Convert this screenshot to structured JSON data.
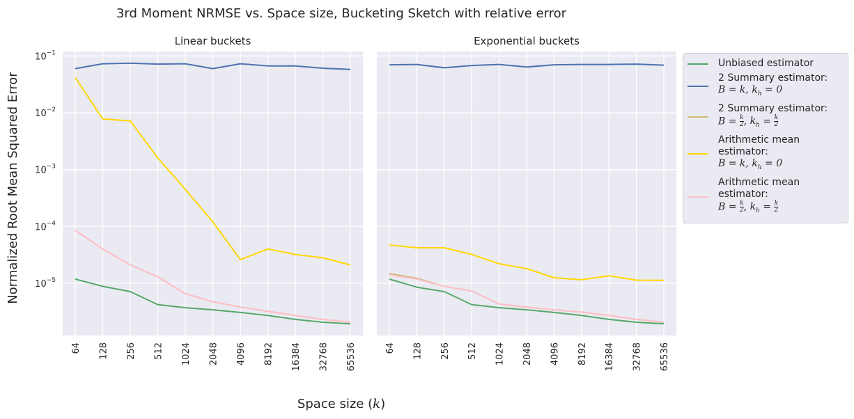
{
  "figure": {
    "title": "3rd Moment NRMSE vs. Space size, Bucketing Sketch with relative error",
    "xlabel": "Space size (k)",
    "ylabel": "Normalized Root Mean Squared Error"
  },
  "legend": {
    "items": [
      {
        "line1": "Unbiased estimator",
        "formula": "",
        "color": "#55a868"
      },
      {
        "line1": "2 Summary estimator:",
        "formula": "B = k, k_h = 0",
        "color": "#4c72b0"
      },
      {
        "line1": "2 Summary estimator:",
        "formula": "B = k/2, k_h = k/2",
        "color": "#ccb974"
      },
      {
        "line1": "Arithmetic mean estimator:",
        "formula": "B = k, k_h = 0",
        "color": "#ffd700"
      },
      {
        "line1": "Arithmetic mean estimator:",
        "formula": "B = k/2, k_h = k/2",
        "color": "#ffc0cb"
      }
    ]
  },
  "chart_data": [
    {
      "type": "line",
      "title": "Linear buckets",
      "yscale": "log",
      "ylim": [
        1.2e-06,
        0.12
      ],
      "ytick_labels": [
        "10^-1",
        "10^-2",
        "10^-3",
        "10^-4",
        "10^-5"
      ],
      "categories": [
        "64",
        "128",
        "256",
        "512",
        "1024",
        "2048",
        "4096",
        "8192",
        "16384",
        "32768",
        "65536"
      ],
      "grid": true,
      "series": [
        {
          "name": "Unbiased estimator",
          "color": "#55a868",
          "values": [
            1.18e-05,
            8.8e-06,
            7.1e-06,
            4.2e-06,
            3.7e-06,
            3.4e-06,
            3.05e-06,
            2.7e-06,
            2.3e-06,
            2.05e-06,
            1.92e-06
          ]
        },
        {
          "name": "2 Summary estimator: B = k, k_h = 0",
          "color": "#4c72b0",
          "values": [
            0.06,
            0.073,
            0.075,
            0.072,
            0.073,
            0.06,
            0.073,
            0.067,
            0.067,
            0.061,
            0.058
          ]
        },
        {
          "name": "2 Summary estimator: B = k/2, k_h = k/2",
          "color": "#ccb974",
          "values": [
            8.5e-05,
            4e-05,
            2.1e-05,
            1.3e-05,
            6.5e-06,
            4.7e-06,
            3.8e-06,
            3.2e-06,
            2.7e-06,
            2.3e-06,
            2.05e-06
          ]
        },
        {
          "name": "Arithmetic mean estimator: B = k, k_h = 0",
          "color": "#ffd700",
          "values": [
            0.042,
            0.0078,
            0.0072,
            0.0016,
            0.00045,
            0.00012,
            2.6e-05,
            4e-05,
            3.2e-05,
            2.8e-05,
            2.1e-05
          ]
        },
        {
          "name": "Arithmetic mean estimator: B = k/2, k_h = k/2",
          "color": "#ffc0cb",
          "values": [
            8.5e-05,
            4e-05,
            2.1e-05,
            1.3e-05,
            6.5e-06,
            4.7e-06,
            3.8e-06,
            3.2e-06,
            2.7e-06,
            2.3e-06,
            2.05e-06
          ]
        }
      ]
    },
    {
      "type": "line",
      "title": "Exponential buckets",
      "yscale": "log",
      "ylim": [
        1.2e-06,
        0.12
      ],
      "categories": [
        "64",
        "128",
        "256",
        "512",
        "1024",
        "2048",
        "4096",
        "8192",
        "16384",
        "32768",
        "65536"
      ],
      "grid": true,
      "series": [
        {
          "name": "Unbiased estimator",
          "color": "#55a868",
          "values": [
            1.18e-05,
            8.5e-06,
            7.1e-06,
            4.2e-06,
            3.7e-06,
            3.4e-06,
            3.05e-06,
            2.7e-06,
            2.3e-06,
            2.05e-06,
            1.92e-06
          ]
        },
        {
          "name": "2 Summary estimator: B = k, k_h = 0",
          "color": "#4c72b0",
          "values": [
            0.07,
            0.071,
            0.062,
            0.068,
            0.071,
            0.064,
            0.07,
            0.071,
            0.071,
            0.072,
            0.069
          ]
        },
        {
          "name": "2 Summary estimator: B = k/2, k_h = k/2",
          "color": "#ccb974",
          "values": [
            1.48e-05,
            1.22e-05,
            8.8e-06,
            7.3e-06,
            4.3e-06,
            3.8e-06,
            3.4e-06,
            3.1e-06,
            2.7e-06,
            2.3e-06,
            2.05e-06
          ]
        },
        {
          "name": "Arithmetic mean estimator: B = k, k_h = 0",
          "color": "#ffd700",
          "values": [
            4.7e-05,
            4.2e-05,
            4.2e-05,
            3.2e-05,
            2.2e-05,
            1.8e-05,
            1.25e-05,
            1.15e-05,
            1.35e-05,
            1.13e-05,
            1.12e-05
          ]
        },
        {
          "name": "Arithmetic mean estimator: B = k/2, k_h = k/2",
          "color": "#ffc0cb",
          "values": [
            1.4e-05,
            1.18e-05,
            8.8e-06,
            7.3e-06,
            4.3e-06,
            3.8e-06,
            3.4e-06,
            3.1e-06,
            2.7e-06,
            2.3e-06,
            2.05e-06
          ]
        }
      ]
    }
  ]
}
